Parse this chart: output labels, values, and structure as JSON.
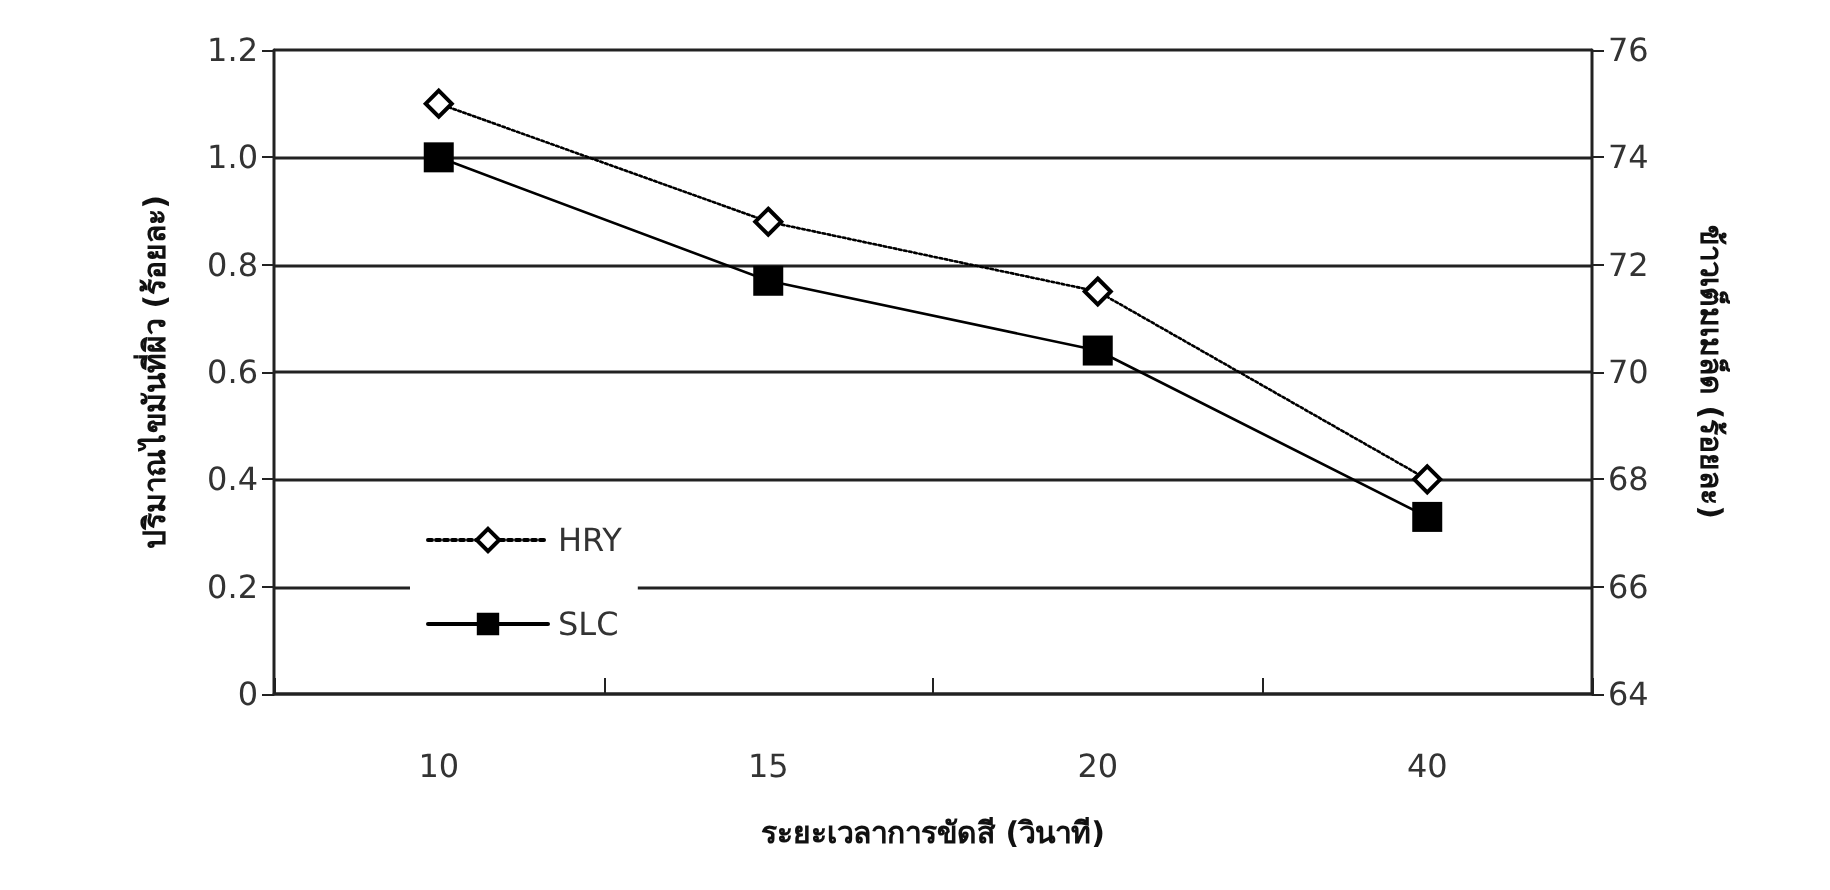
{
  "chart_data": {
    "type": "line",
    "xlabel": "ระยะเวลาการขัดสี (วินาที)",
    "ylabel": "ปริมาณไขมันที่ผิว (ร้อยละ)",
    "y2label": "ข้าวเต็มเมล็ด (ร้อยละ)",
    "categories": [
      "10",
      "15",
      "20",
      "40"
    ],
    "series": [
      {
        "name": "HRY",
        "color": "#000000",
        "axis": "y2",
        "marker": "diamond",
        "line_style": "dotted",
        "values": [
          75,
          72.8,
          71.5,
          68
        ]
      },
      {
        "name": "SLC",
        "color": "#000000",
        "marker": "square",
        "line_style": "solid",
        "values": [
          1.0,
          0.77,
          0.64,
          0.33
        ]
      }
    ],
    "ylim": [
      0,
      1.2
    ],
    "yticks": [
      0,
      {
        "value": 0.2,
        "label": "0.2"
      },
      {
        "value": 0.4,
        "label": "0.4"
      },
      {
        "value": 0.6,
        "label": "0.6"
      },
      {
        "value": 0.8,
        "label": "0.8"
      },
      {
        "value": 1.0,
        "label": "1.0"
      },
      {
        "value": 1.2,
        "label": "1.2"
      }
    ],
    "y2lim": [
      64,
      76
    ],
    "y2ticks": [
      64,
      66,
      68,
      70,
      72,
      74,
      76
    ],
    "grid": "y",
    "legend": "bottom left"
  }
}
